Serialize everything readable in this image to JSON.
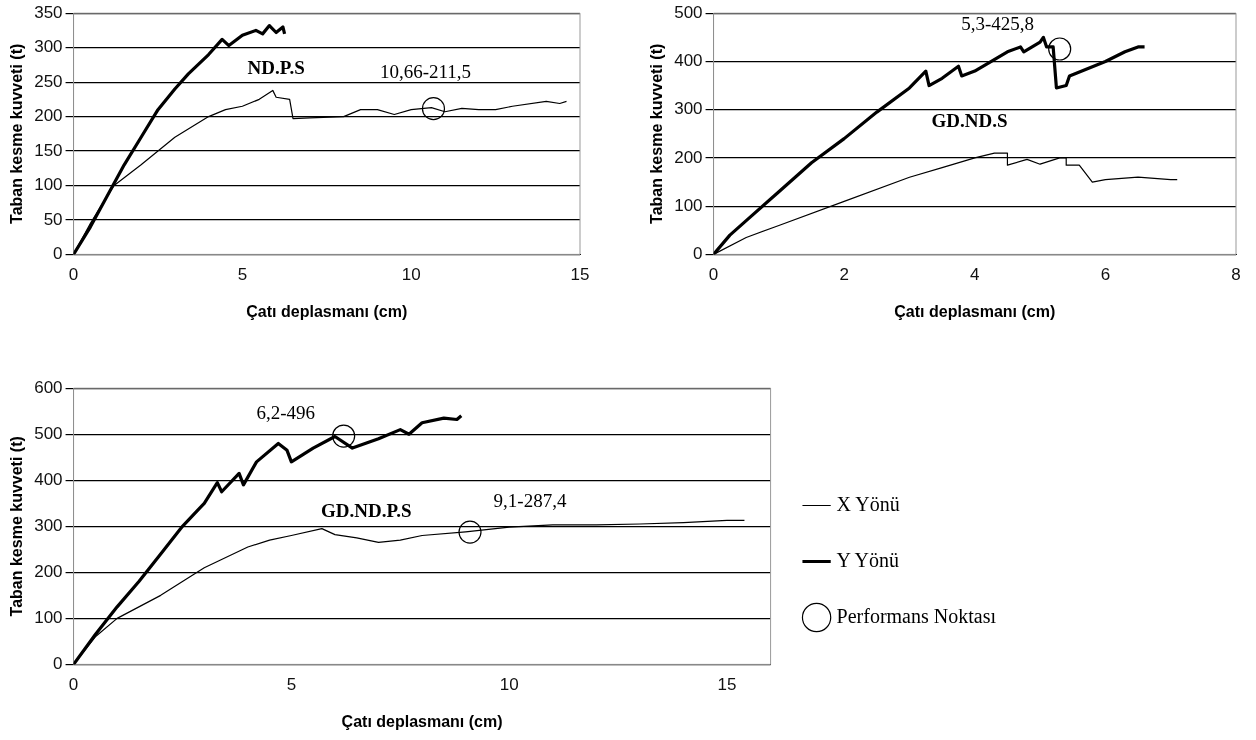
{
  "chart_data": [
    {
      "type": "line",
      "annotations": [
        "ND.P.S"
      ],
      "xlabel": "Çatı deplasmanı (cm)",
      "ylabel": "Taban kesme kuvveti (t)",
      "xlim": [
        0,
        15
      ],
      "xticks": [
        0,
        5,
        10,
        15
      ],
      "ylim": [
        0,
        350
      ],
      "yticks": [
        0,
        50,
        100,
        150,
        200,
        250,
        300,
        350
      ],
      "grid": "y",
      "legend": false,
      "line_style": "solid",
      "marker": "none",
      "series": [
        {
          "color": "#000000",
          "x": [
            0,
            0.5,
            1,
            1.2,
            2,
            3,
            4,
            4.5,
            5,
            5.5,
            5.9,
            6,
            6.4,
            6.5,
            7,
            8,
            8.5,
            9,
            9.5,
            10,
            10.6,
            11,
            11.5,
            12,
            12.5,
            13,
            14,
            14.4,
            14.6
          ],
          "values": [
            0,
            45,
            85,
            100,
            130,
            170,
            200,
            210,
            215,
            225,
            238,
            228,
            225,
            197,
            198,
            200,
            210,
            210,
            203,
            210,
            213,
            207,
            212,
            210,
            210,
            215,
            222,
            219,
            222
          ]
        },
        {
          "color": "#000000",
          "x": [
            0,
            0.5,
            1,
            1.5,
            2,
            2.5,
            3,
            3.4,
            4,
            4.4,
            4.6,
            5,
            5.4,
            5.6,
            5.8,
            6,
            6.2,
            6.25
          ],
          "values": [
            0,
            40,
            85,
            130,
            170,
            210,
            240,
            262,
            290,
            312,
            303,
            318,
            325,
            320,
            332,
            322,
            330,
            320
          ]
        },
        {
          "type": "scatter",
          "marker": "circle",
          "color": "#000000",
          "x": [
            10.66
          ],
          "values": [
            211.5
          ],
          "value_labels": [
            "10,66-211,5"
          ]
        }
      ]
    },
    {
      "type": "line",
      "annotations": [
        "GD.ND.S"
      ],
      "xlabel": "Çatı deplasmanı (cm)",
      "ylabel": "Taban kesme kuvveti (t)",
      "xlim": [
        0,
        8
      ],
      "xticks": [
        0,
        2,
        4,
        6,
        8
      ],
      "ylim": [
        0,
        500
      ],
      "yticks": [
        0,
        100,
        200,
        300,
        400,
        500
      ],
      "grid": "y",
      "legend": false,
      "line_style": "solid",
      "marker": "none",
      "series": [
        {
          "color": "#000000",
          "x": [
            0,
            0.5,
            1,
            2,
            3,
            3.5,
            4,
            4.3,
            4.5,
            4.5,
            4.8,
            5,
            5.3,
            5.4,
            5.4,
            5.6,
            5.8,
            6,
            6.5,
            7,
            7.1
          ],
          "values": [
            0,
            35,
            60,
            110,
            160,
            180,
            200,
            210,
            210,
            185,
            197,
            187,
            200,
            200,
            185,
            185,
            150,
            155,
            160,
            155,
            155
          ]
        },
        {
          "color": "#000000",
          "x": [
            0,
            0.25,
            0.5,
            1,
            1.5,
            2,
            2.5,
            3,
            3.25,
            3.3,
            3.5,
            3.75,
            3.8,
            4,
            4.5,
            4.7,
            4.75,
            5,
            5.05,
            5.1,
            5.2,
            5.25,
            5.4,
            5.45,
            6,
            6.3,
            6.5,
            6.6
          ],
          "values": [
            0,
            40,
            70,
            130,
            190,
            240,
            295,
            345,
            380,
            350,
            365,
            390,
            370,
            380,
            420,
            430,
            420,
            440,
            450,
            430,
            430,
            345,
            350,
            370,
            400,
            420,
            430,
            430
          ]
        },
        {
          "type": "scatter",
          "marker": "circle",
          "color": "#000000",
          "x": [
            5.3
          ],
          "values": [
            425.8
          ],
          "value_labels": [
            "5,3-425,8"
          ]
        }
      ]
    },
    {
      "type": "line",
      "annotations": [
        "GD.ND.P.S"
      ],
      "xlabel": "Çatı deplasmanı (cm)",
      "ylabel": "Taban kesme kuvveti (t)",
      "xlim": [
        0,
        16
      ],
      "xticks": [
        0,
        5,
        10,
        15
      ],
      "ylim": [
        0,
        600
      ],
      "yticks": [
        0,
        100,
        200,
        300,
        400,
        500,
        600
      ],
      "grid": "y",
      "legend": "right",
      "line_style": "solid",
      "marker": "none",
      "series": [
        {
          "name": "X Yönü",
          "color": "#000000",
          "x": [
            0,
            0.5,
            1,
            2,
            3,
            4,
            4.5,
            5,
            5.7,
            6,
            6.5,
            7,
            7.5,
            8,
            9,
            10,
            11,
            12,
            13,
            14,
            15,
            15.4
          ],
          "values": [
            0,
            60,
            100,
            150,
            210,
            255,
            270,
            280,
            295,
            282,
            275,
            265,
            270,
            280,
            288,
            298,
            303,
            303,
            305,
            308,
            313,
            313
          ]
        },
        {
          "name": "Y Yönü",
          "color": "#000000",
          "x": [
            0,
            0.5,
            1,
            1.5,
            2,
            2.5,
            3,
            3.3,
            3.4,
            3.8,
            3.9,
            4.2,
            4.7,
            4.9,
            5,
            5.5,
            6,
            6.4,
            7,
            7.5,
            7.7,
            8,
            8.5,
            8.8,
            8.9
          ],
          "values": [
            0,
            65,
            125,
            180,
            240,
            300,
            350,
            395,
            375,
            415,
            390,
            440,
            480,
            465,
            440,
            470,
            495,
            470,
            490,
            510,
            500,
            525,
            535,
            532,
            540
          ]
        },
        {
          "type": "scatter",
          "marker": "circle",
          "name": "Performans Noktası",
          "color": "#000000",
          "x": [
            6.2,
            9.1
          ],
          "values": [
            496,
            287.4
          ],
          "value_labels": [
            "6,2-496",
            "9,1-287,4"
          ]
        }
      ]
    }
  ]
}
